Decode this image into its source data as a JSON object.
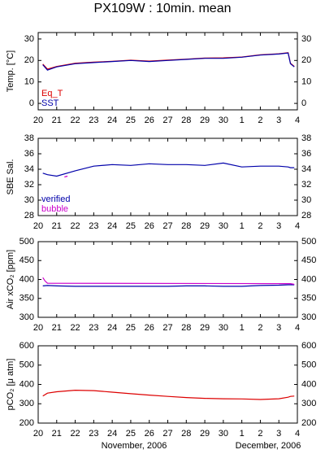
{
  "title": "PX109W : 10min. mean",
  "month_labels": [
    "November, 2006",
    "December, 2006"
  ],
  "chart_data": [
    {
      "type": "line",
      "ylabel": "Temp. [°C]",
      "x": [
        "2006-11-20T06:00",
        "2006-11-20T12:00",
        "2006-11-21T00:00",
        "2006-11-22T00:00",
        "2006-11-23T00:00",
        "2006-11-24T00:00",
        "2006-11-25T00:00",
        "2006-11-26T00:00",
        "2006-11-27T00:00",
        "2006-11-28T00:00",
        "2006-11-29T00:00",
        "2006-11-30T00:00",
        "2006-12-01T00:00",
        "2006-12-02T00:00",
        "2006-12-03T00:00",
        "2006-12-03T12:00",
        "2006-12-03T15:00",
        "2006-12-03T20:00"
      ],
      "series": [
        {
          "name": "Eq_T",
          "color": "#dd0000",
          "values": [
            18.3,
            16,
            17.2,
            18.7,
            19.2,
            19.6,
            20.1,
            19.7,
            20.2,
            20.6,
            21.1,
            21.2,
            21.6,
            22.6,
            23.1,
            23.6,
            18.7,
            17.2
          ]
        },
        {
          "name": "SST",
          "color": "#0000aa",
          "values": [
            18,
            15.5,
            17,
            18.5,
            19,
            19.5,
            20,
            19.5,
            20,
            20.5,
            21,
            21,
            21.5,
            22.5,
            23,
            23.5,
            18.5,
            17
          ]
        }
      ],
      "xlim": [
        "2006-11-20T00:00",
        "2006-12-04T00:00"
      ],
      "xticks": [
        {
          "value": "2006-11-20T00:00",
          "label": "20"
        },
        {
          "value": "2006-11-21T00:00",
          "label": "21"
        },
        {
          "value": "2006-11-22T00:00",
          "label": "22"
        },
        {
          "value": "2006-11-23T00:00",
          "label": "23"
        },
        {
          "value": "2006-11-24T00:00",
          "label": "24"
        },
        {
          "value": "2006-11-25T00:00",
          "label": "25"
        },
        {
          "value": "2006-11-26T00:00",
          "label": "26"
        },
        {
          "value": "2006-11-27T00:00",
          "label": "27"
        },
        {
          "value": "2006-11-28T00:00",
          "label": "28"
        },
        {
          "value": "2006-11-29T00:00",
          "label": "29"
        },
        {
          "value": "2006-11-30T00:00",
          "label": "30"
        },
        {
          "value": "2006-12-01T00:00",
          "label": "1"
        },
        {
          "value": "2006-12-02T00:00",
          "label": "2"
        },
        {
          "value": "2006-12-03T00:00",
          "label": "3"
        },
        {
          "value": "2006-12-04T00:00",
          "label": "4"
        }
      ],
      "ylim": [
        -3,
        33
      ],
      "yticks": [
        0,
        10,
        20,
        30
      ],
      "legend": "lower left"
    },
    {
      "type": "line",
      "ylabel": "SBE Sal.",
      "x": [
        "2006-11-20T06:00",
        "2006-11-20T12:00",
        "2006-11-21T00:00",
        "2006-11-22T00:00",
        "2006-11-23T00:00",
        "2006-11-24T00:00",
        "2006-11-25T00:00",
        "2006-11-26T00:00",
        "2006-11-27T00:00",
        "2006-11-28T00:00",
        "2006-11-29T00:00",
        "2006-11-30T00:00",
        "2006-12-01T00:00",
        "2006-12-02T00:00",
        "2006-12-03T00:00",
        "2006-12-03T12:00",
        "2006-12-03T15:00",
        "2006-12-03T20:00"
      ],
      "series": [
        {
          "name": "verified",
          "color": "#0000aa",
          "values": [
            33.5,
            33.3,
            33.1,
            33.8,
            34.4,
            34.6,
            34.5,
            34.7,
            34.6,
            34.6,
            34.5,
            34.8,
            34.3,
            34.4,
            34.4,
            34.3,
            34.2,
            34.2
          ]
        },
        {
          "name": "bubble",
          "color": "#cc00cc",
          "x": [
            "2006-11-21T10:00",
            "2006-11-21T14:00"
          ],
          "values": [
            33.0,
            33.1
          ]
        }
      ],
      "xlim": [
        "2006-11-20T00:00",
        "2006-12-04T00:00"
      ],
      "xticks": [
        {
          "value": "2006-11-20T00:00",
          "label": "20"
        },
        {
          "value": "2006-11-21T00:00",
          "label": "21"
        },
        {
          "value": "2006-11-22T00:00",
          "label": "22"
        },
        {
          "value": "2006-11-23T00:00",
          "label": "23"
        },
        {
          "value": "2006-11-24T00:00",
          "label": "24"
        },
        {
          "value": "2006-11-25T00:00",
          "label": "25"
        },
        {
          "value": "2006-11-26T00:00",
          "label": "26"
        },
        {
          "value": "2006-11-27T00:00",
          "label": "27"
        },
        {
          "value": "2006-11-28T00:00",
          "label": "28"
        },
        {
          "value": "2006-11-29T00:00",
          "label": "29"
        },
        {
          "value": "2006-11-30T00:00",
          "label": "30"
        },
        {
          "value": "2006-12-01T00:00",
          "label": "1"
        },
        {
          "value": "2006-12-02T00:00",
          "label": "2"
        },
        {
          "value": "2006-12-03T00:00",
          "label": "3"
        },
        {
          "value": "2006-12-04T00:00",
          "label": "4"
        }
      ],
      "ylim": [
        28,
        38
      ],
      "yticks": [
        28,
        30,
        32,
        34,
        36,
        38
      ],
      "legend": "lower left"
    },
    {
      "type": "line",
      "ylabel": "Air xCO₂ [ppm]",
      "x": [
        "2006-11-20T06:00",
        "2006-11-20T12:00",
        "2006-11-21T00:00",
        "2006-11-22T00:00",
        "2006-11-23T00:00",
        "2006-11-24T00:00",
        "2006-11-25T00:00",
        "2006-11-26T00:00",
        "2006-11-27T00:00",
        "2006-11-28T00:00",
        "2006-11-29T00:00",
        "2006-11-30T00:00",
        "2006-12-01T00:00",
        "2006-12-02T00:00",
        "2006-12-03T00:00",
        "2006-12-03T12:00",
        "2006-12-03T15:00",
        "2006-12-03T20:00"
      ],
      "series": [
        {
          "color": "#0000aa",
          "values": [
            383,
            384,
            383,
            382,
            382,
            382,
            382,
            382,
            382,
            383,
            383,
            382,
            382,
            384,
            385,
            386,
            386,
            386
          ]
        },
        {
          "color": "#cc00cc",
          "x": [
            "2006-11-20T06:00",
            "2006-11-20T09:00",
            "2006-11-20T12:00",
            "2006-12-03T15:00",
            "2006-12-03T20:00"
          ],
          "values": [
            405,
            396,
            390,
            389,
            387
          ]
        }
      ],
      "xlim": [
        "2006-11-20T00:00",
        "2006-12-04T00:00"
      ],
      "xticks": [
        {
          "value": "2006-11-20T00:00",
          "label": "20"
        },
        {
          "value": "2006-11-21T00:00",
          "label": "21"
        },
        {
          "value": "2006-11-22T00:00",
          "label": "22"
        },
        {
          "value": "2006-11-23T00:00",
          "label": "23"
        },
        {
          "value": "2006-11-24T00:00",
          "label": "24"
        },
        {
          "value": "2006-11-25T00:00",
          "label": "25"
        },
        {
          "value": "2006-11-26T00:00",
          "label": "26"
        },
        {
          "value": "2006-11-27T00:00",
          "label": "27"
        },
        {
          "value": "2006-11-28T00:00",
          "label": "28"
        },
        {
          "value": "2006-11-29T00:00",
          "label": "29"
        },
        {
          "value": "2006-11-30T00:00",
          "label": "30"
        },
        {
          "value": "2006-12-01T00:00",
          "label": "1"
        },
        {
          "value": "2006-12-02T00:00",
          "label": "2"
        },
        {
          "value": "2006-12-03T00:00",
          "label": "3"
        },
        {
          "value": "2006-12-04T00:00",
          "label": "4"
        }
      ],
      "ylim": [
        300,
        500
      ],
      "yticks": [
        300,
        350,
        400,
        450,
        500
      ]
    },
    {
      "type": "line",
      "ylabel": "pCO₂ [μ atm]",
      "x": [
        "2006-11-20T06:00",
        "2006-11-20T12:00",
        "2006-11-21T00:00",
        "2006-11-22T00:00",
        "2006-11-23T00:00",
        "2006-11-24T00:00",
        "2006-11-25T00:00",
        "2006-11-26T00:00",
        "2006-11-27T00:00",
        "2006-11-28T00:00",
        "2006-11-29T00:00",
        "2006-11-30T00:00",
        "2006-12-01T00:00",
        "2006-12-02T00:00",
        "2006-12-03T00:00",
        "2006-12-03T12:00",
        "2006-12-03T15:00",
        "2006-12-03T20:00"
      ],
      "series": [
        {
          "color": "#dd0000",
          "values": [
            340,
            355,
            362,
            370,
            368,
            360,
            352,
            345,
            338,
            332,
            328,
            326,
            325,
            322,
            326,
            334,
            338,
            340
          ]
        }
      ],
      "xlim": [
        "2006-11-20T00:00",
        "2006-12-04T00:00"
      ],
      "xticks": [
        {
          "value": "2006-11-20T00:00",
          "label": "20"
        },
        {
          "value": "2006-11-21T00:00",
          "label": "21"
        },
        {
          "value": "2006-11-22T00:00",
          "label": "22"
        },
        {
          "value": "2006-11-23T00:00",
          "label": "23"
        },
        {
          "value": "2006-11-24T00:00",
          "label": "24"
        },
        {
          "value": "2006-11-25T00:00",
          "label": "25"
        },
        {
          "value": "2006-11-26T00:00",
          "label": "26"
        },
        {
          "value": "2006-11-27T00:00",
          "label": "27"
        },
        {
          "value": "2006-11-28T00:00",
          "label": "28"
        },
        {
          "value": "2006-11-29T00:00",
          "label": "29"
        },
        {
          "value": "2006-11-30T00:00",
          "label": "30"
        },
        {
          "value": "2006-12-01T00:00",
          "label": "1"
        },
        {
          "value": "2006-12-02T00:00",
          "label": "2"
        },
        {
          "value": "2006-12-03T00:00",
          "label": "3"
        },
        {
          "value": "2006-12-04T00:00",
          "label": "4"
        }
      ],
      "ylim": [
        200,
        600
      ],
      "yticks": [
        200,
        300,
        400,
        500,
        600
      ]
    }
  ]
}
